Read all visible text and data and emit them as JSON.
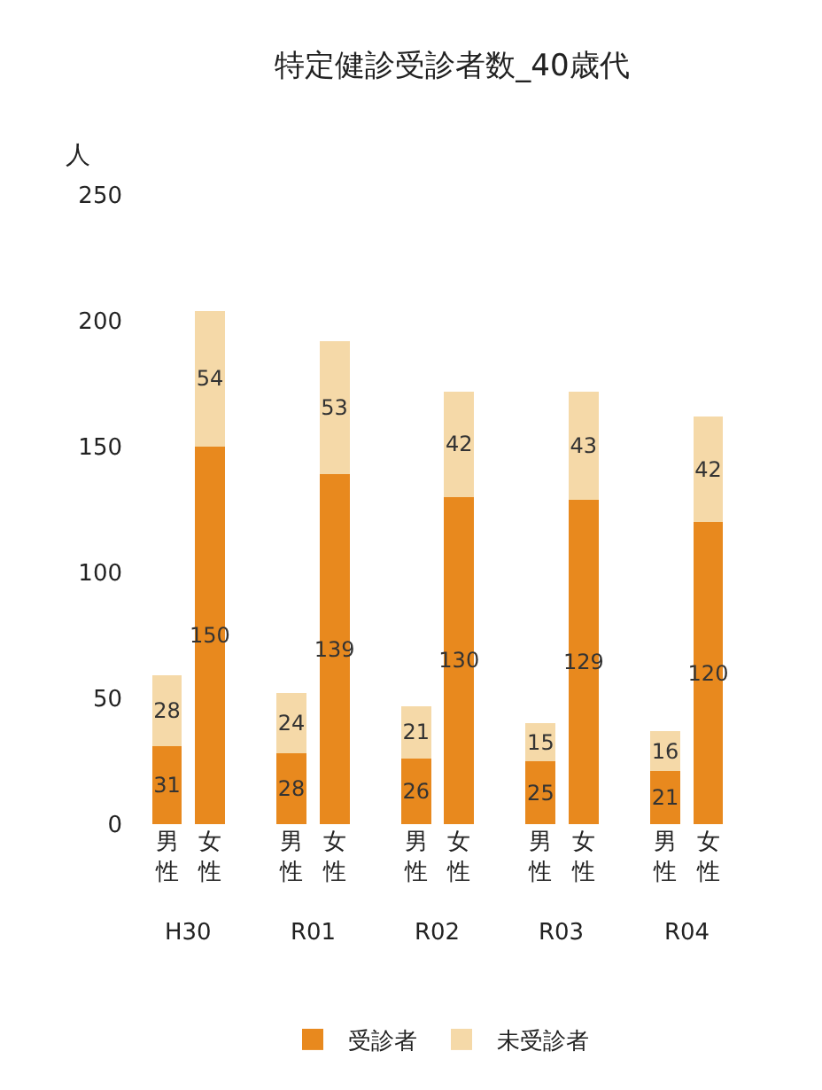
{
  "chart_data": {
    "type": "bar",
    "title": "特定健診受診者数_40歳代",
    "ylabel": "人",
    "categories": [
      "男性",
      "女性",
      "男性",
      "女性",
      "男性",
      "女性",
      "男性",
      "女性",
      "男性",
      "女性"
    ],
    "annotations": [
      "H30",
      "R01",
      "R02",
      "R03",
      "R04"
    ],
    "stacked": true,
    "data_labels": true,
    "legend": "bottom",
    "ylim": [
      0,
      250
    ],
    "yticks": [
      0,
      50,
      100,
      150,
      200,
      250
    ],
    "series": [
      {
        "name": "受診者",
        "color": "#e8891e",
        "values": [
          31,
          150,
          28,
          139,
          26,
          130,
          25,
          129,
          21,
          120
        ]
      },
      {
        "name": "未受診者",
        "color": "#f5d9a8",
        "values": [
          28,
          54,
          24,
          53,
          21,
          42,
          15,
          43,
          16,
          42
        ]
      }
    ]
  }
}
